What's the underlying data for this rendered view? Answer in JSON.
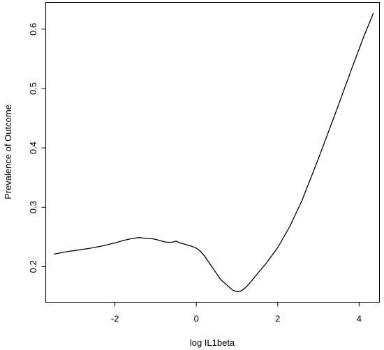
{
  "chart_data": {
    "type": "line",
    "xlabel": "log IL1beta",
    "ylabel": "Prevalence of Outcome",
    "xlim": [
      -3.7,
      4.5
    ],
    "ylim": [
      0.14,
      0.645
    ],
    "x_ticks": [
      -2,
      0,
      2,
      4
    ],
    "x_tick_labels": [
      "-2",
      "0",
      "2",
      "4"
    ],
    "y_ticks": [
      0.2,
      0.3,
      0.4,
      0.5,
      0.6
    ],
    "y_tick_labels": [
      "0.2",
      "0.3",
      "0.4",
      "0.5",
      "0.6"
    ],
    "grid": false,
    "series": [
      {
        "x": [
          -3.5,
          -3.2,
          -2.9,
          -2.6,
          -2.3,
          -2.0,
          -1.8,
          -1.6,
          -1.4,
          -1.3,
          -1.2,
          -1.1,
          -1.0,
          -0.9,
          -0.8,
          -0.7,
          -0.6,
          -0.5,
          -0.4,
          -0.3,
          -0.2,
          -0.1,
          0.0,
          0.1,
          0.2,
          0.3,
          0.4,
          0.5,
          0.6,
          0.7,
          0.8,
          0.9,
          1.0,
          1.1,
          1.2,
          1.3,
          1.5,
          1.7,
          2.0,
          2.3,
          2.6,
          3.0,
          3.4,
          3.8,
          4.1,
          4.35
        ],
        "y": [
          0.221,
          0.225,
          0.228,
          0.231,
          0.235,
          0.24,
          0.244,
          0.247,
          0.249,
          0.248,
          0.247,
          0.247,
          0.246,
          0.244,
          0.242,
          0.241,
          0.241,
          0.243,
          0.24,
          0.238,
          0.236,
          0.234,
          0.231,
          0.226,
          0.218,
          0.208,
          0.198,
          0.188,
          0.178,
          0.172,
          0.166,
          0.16,
          0.158,
          0.159,
          0.164,
          0.171,
          0.188,
          0.204,
          0.232,
          0.268,
          0.312,
          0.382,
          0.455,
          0.53,
          0.585,
          0.627
        ]
      }
    ]
  }
}
